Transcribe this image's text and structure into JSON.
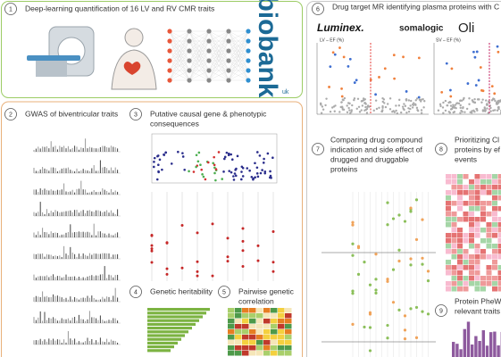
{
  "panels": [
    {
      "number": 1,
      "title": [
        "Deep-learning quantification of 16 LV and RV CMR traits"
      ]
    },
    {
      "number": 2,
      "title": [
        "GWAS of biventricular traits"
      ]
    },
    {
      "number": 3,
      "title": [
        "Putative causal gene & phenotypic",
        "consequences"
      ]
    },
    {
      "number": 4,
      "title": [
        "Genetic heritability"
      ]
    },
    {
      "number": 5,
      "title": [
        "Pairwise genetic",
        "correlation"
      ]
    },
    {
      "number": 6,
      "title": [
        "Drug target MR identifying plasma proteins with C"
      ]
    },
    {
      "number": 7,
      "title": [
        "Comparing drug compound",
        "indication and side effect of",
        "drugged and druggable",
        "proteins"
      ]
    },
    {
      "number": 8,
      "title": [
        "Prioritizing Cl",
        "proteins by ef",
        "events"
      ]
    },
    {
      "number": 9,
      "title": [
        "Protein PheW",
        "relevant traits"
      ]
    }
  ],
  "logos": {
    "biobank": "biobank",
    "uk": "uk",
    "luminex": "Luminex.",
    "somalogic": "somalogic",
    "olink": "Oli"
  },
  "plots": [
    "LV – EF (%)",
    "SV – EF (%)"
  ]
}
